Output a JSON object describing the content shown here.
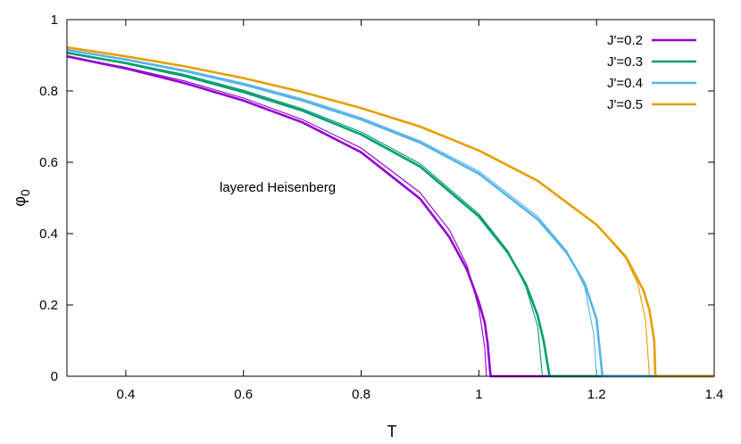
{
  "chart_data": {
    "type": "line",
    "xlabel": "T",
    "ylabel": "φ",
    "ylabel_subscript": "0",
    "xlim": [
      0.3,
      1.4
    ],
    "ylim": [
      0,
      1
    ],
    "xticks": [
      "0.4",
      "0.6",
      "0.8",
      "1",
      "1.2",
      "1.4"
    ],
    "yticks": [
      "0",
      "0.2",
      "0.4",
      "0.6",
      "0.8",
      "1"
    ],
    "annotation": "layered Heisenberg",
    "legend_position": "top-right",
    "series": [
      {
        "name": "J'=0.2",
        "color": "#9400d3",
        "thick": {
          "x": [
            0.3,
            0.4,
            0.5,
            0.6,
            0.7,
            0.8,
            0.9,
            0.95,
            0.98,
            1.0,
            1.01,
            1.015,
            1.02,
            1.025,
            1.1,
            1.2,
            1.3,
            1.4
          ],
          "y": [
            0.897,
            0.863,
            0.822,
            0.773,
            0.712,
            0.628,
            0.498,
            0.39,
            0.298,
            0.208,
            0.15,
            0.09,
            0.0,
            0.0,
            0.0,
            0.0,
            0.0,
            0.0
          ]
        },
        "thin": {
          "x": [
            0.3,
            0.4,
            0.5,
            0.6,
            0.7,
            0.8,
            0.9,
            0.95,
            0.98,
            1.0,
            1.01,
            1.013,
            1.4
          ],
          "y": [
            0.897,
            0.866,
            0.828,
            0.78,
            0.72,
            0.64,
            0.515,
            0.41,
            0.31,
            0.19,
            0.08,
            0.0,
            0.0
          ]
        }
      },
      {
        "name": "J'=0.3",
        "color": "#009e73",
        "thick": {
          "x": [
            0.3,
            0.4,
            0.5,
            0.6,
            0.7,
            0.8,
            0.9,
            1.0,
            1.05,
            1.08,
            1.1,
            1.11,
            1.115,
            1.12,
            1.4
          ],
          "y": [
            0.907,
            0.878,
            0.842,
            0.797,
            0.745,
            0.678,
            0.588,
            0.448,
            0.345,
            0.258,
            0.17,
            0.1,
            0.05,
            0.0,
            0.0
          ]
        },
        "thin": {
          "x": [
            0.3,
            0.4,
            0.5,
            0.6,
            0.7,
            0.8,
            0.9,
            1.0,
            1.05,
            1.08,
            1.1,
            1.108,
            1.4
          ],
          "y": [
            0.907,
            0.88,
            0.846,
            0.802,
            0.75,
            0.685,
            0.596,
            0.455,
            0.35,
            0.25,
            0.14,
            0.0,
            0.0
          ]
        }
      },
      {
        "name": "J'=0.4",
        "color": "#56b4e9",
        "thick": {
          "x": [
            0.3,
            0.4,
            0.5,
            0.6,
            0.7,
            0.8,
            0.9,
            1.0,
            1.1,
            1.15,
            1.18,
            1.2,
            1.205,
            1.21,
            1.4
          ],
          "y": [
            0.915,
            0.888,
            0.856,
            0.818,
            0.773,
            0.72,
            0.655,
            0.568,
            0.44,
            0.345,
            0.26,
            0.16,
            0.08,
            0.0,
            0.0
          ]
        },
        "thin": {
          "x": [
            0.3,
            0.4,
            0.5,
            0.6,
            0.7,
            0.8,
            0.9,
            1.0,
            1.1,
            1.15,
            1.18,
            1.195,
            1.2,
            1.4
          ],
          "y": [
            0.915,
            0.89,
            0.859,
            0.822,
            0.778,
            0.725,
            0.66,
            0.575,
            0.448,
            0.35,
            0.25,
            0.12,
            0.0,
            0.0
          ]
        }
      },
      {
        "name": "J'=0.5",
        "color": "#e69f00",
        "thick": {
          "x": [
            0.3,
            0.4,
            0.5,
            0.6,
            0.7,
            0.8,
            0.9,
            1.0,
            1.1,
            1.2,
            1.25,
            1.28,
            1.29,
            1.298,
            1.3,
            1.4
          ],
          "y": [
            0.922,
            0.897,
            0.869,
            0.836,
            0.797,
            0.752,
            0.7,
            0.633,
            0.548,
            0.425,
            0.335,
            0.24,
            0.185,
            0.1,
            0.0,
            0.0
          ]
        },
        "thin": {
          "x": [
            0.3,
            0.4,
            0.5,
            0.6,
            0.7,
            0.8,
            0.9,
            1.0,
            1.1,
            1.2,
            1.25,
            1.27,
            1.283,
            1.29,
            1.4
          ],
          "y": [
            0.922,
            0.897,
            0.869,
            0.836,
            0.797,
            0.752,
            0.7,
            0.633,
            0.548,
            0.425,
            0.33,
            0.26,
            0.16,
            0.0,
            0.0
          ]
        }
      }
    ]
  }
}
